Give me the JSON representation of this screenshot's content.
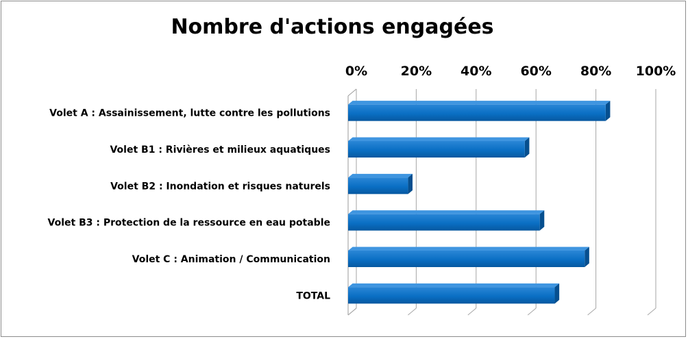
{
  "chart_data": {
    "type": "bar",
    "orientation": "horizontal",
    "title": "Nombre d'actions engagées",
    "xlabel": "",
    "ylabel": "",
    "xlim": [
      0,
      100
    ],
    "x_ticks": [
      "0%",
      "20%",
      "40%",
      "60%",
      "80%",
      "100%"
    ],
    "categories": [
      "Volet A : Assainissement, lutte contre les pollutions",
      "Volet B1 : Rivières et milieux aquatiques",
      "Volet B2 : Inondation et risques naturels",
      "Volet B3 : Protection de la ressource en eau potable",
      "Volet C : Animation / Communication",
      "TOTAL"
    ],
    "values": [
      86,
      59,
      20,
      64,
      79,
      69
    ],
    "bar_color": "#0a6fc4",
    "grid": true,
    "axis_position": "top"
  }
}
